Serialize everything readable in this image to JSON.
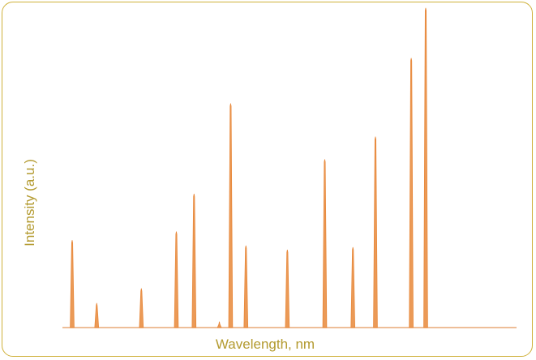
{
  "chart_data": {
    "type": "line",
    "title": "",
    "xlabel": "Wavelength, nm",
    "ylabel": "Intensity (a.u.)",
    "x_ticks_shown": false,
    "y_ticks_shown": false,
    "grid": false,
    "baseline": 0,
    "xlim": [
      0,
      1
    ],
    "ylim": [
      0,
      100
    ],
    "line_color": "#e8883a",
    "series": [
      {
        "peaks": [
          {
            "x": 0.0,
            "y": 27.3
          },
          {
            "x": 0.061,
            "y": 7.6
          },
          {
            "x": 0.172,
            "y": 12.2
          },
          {
            "x": 0.259,
            "y": 30.0
          },
          {
            "x": 0.303,
            "y": 41.8
          },
          {
            "x": 0.366,
            "y": 1.8
          },
          {
            "x": 0.394,
            "y": 70.1
          },
          {
            "x": 0.432,
            "y": 25.6
          },
          {
            "x": 0.535,
            "y": 24.3
          },
          {
            "x": 0.628,
            "y": 52.6
          },
          {
            "x": 0.698,
            "y": 25.1
          },
          {
            "x": 0.754,
            "y": 59.7
          },
          {
            "x": 0.843,
            "y": 84.3
          },
          {
            "x": 0.879,
            "y": 100.0
          }
        ]
      }
    ]
  },
  "frame_color": "#cfb13a",
  "label_color": "#b39a2f"
}
